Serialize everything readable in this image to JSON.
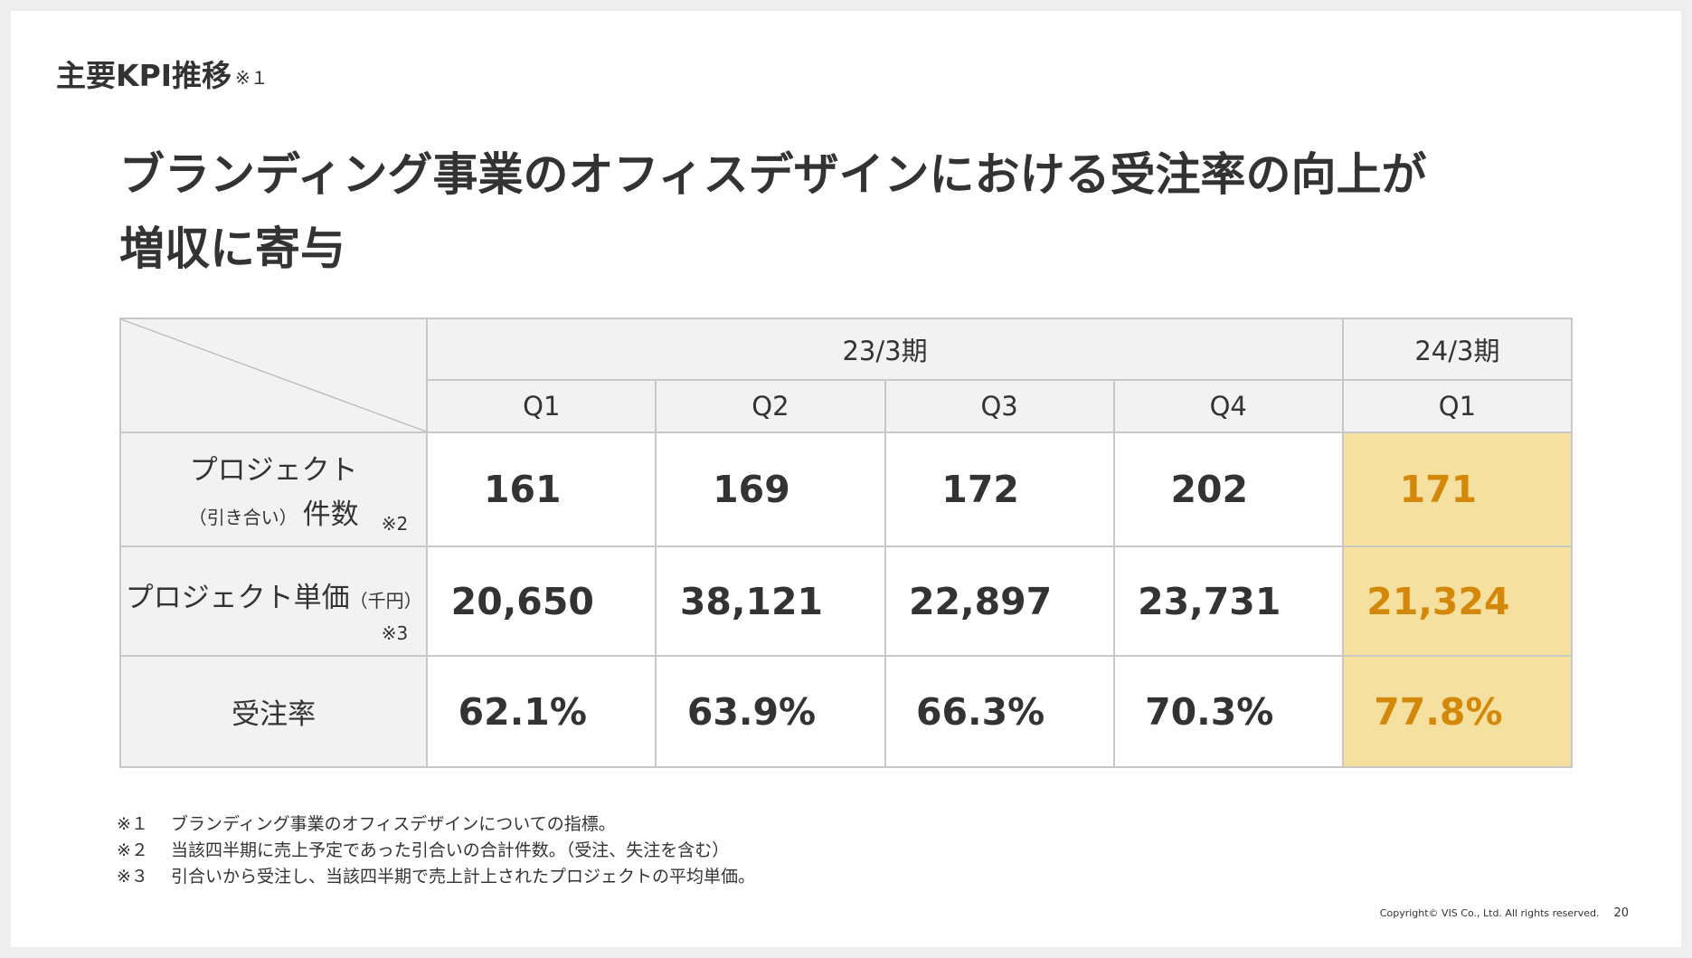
{
  "section_title": "主要KPI推移",
  "section_title_note": "※１",
  "headline": {
    "line1": "ブランディング事業のオフィスデザインにおける受注率の向上が",
    "line2": "増収に寄与"
  },
  "table": {
    "period_headers": [
      "23/3期",
      "24/3期"
    ],
    "quarters": [
      "Q1",
      "Q2",
      "Q3",
      "Q4",
      "Q1"
    ],
    "rows": [
      {
        "label_main": "プロジェクト",
        "label_sub_small": "（引き合い）",
        "label_sub": "件数",
        "note": "※2",
        "values": [
          "161",
          "169",
          "172",
          "202",
          "171"
        ]
      },
      {
        "label_main": "プロジェクト単価",
        "label_unit": "（千円）",
        "note": "※3",
        "values": [
          "20,650",
          "38,121",
          "22,897",
          "23,731",
          "21,324"
        ]
      },
      {
        "label_main": "受注率",
        "values": [
          "62.1%",
          "63.9%",
          "66.3%",
          "70.3%",
          "77.8%"
        ]
      }
    ]
  },
  "footnotes": [
    {
      "mark": "※１",
      "text": "ブランディング事業のオフィスデザインについての指標。"
    },
    {
      "mark": "※２",
      "text": "当該四半期に売上予定であった引合いの合計件数。（受注、失注を含む）"
    },
    {
      "mark": "※３",
      "text": "引合いから受注し、当該四半期で売上計上されたプロジェクトの平均単価。"
    }
  ],
  "copyright": "Copyright© VIS Co., Ltd. All rights reserved.",
  "page_number": "20",
  "colors": {
    "highlight_bg": "#f6e09f",
    "highlight_text": "#d4880a",
    "header_bg": "#f2f2f2",
    "border": "#c8c8c8"
  }
}
